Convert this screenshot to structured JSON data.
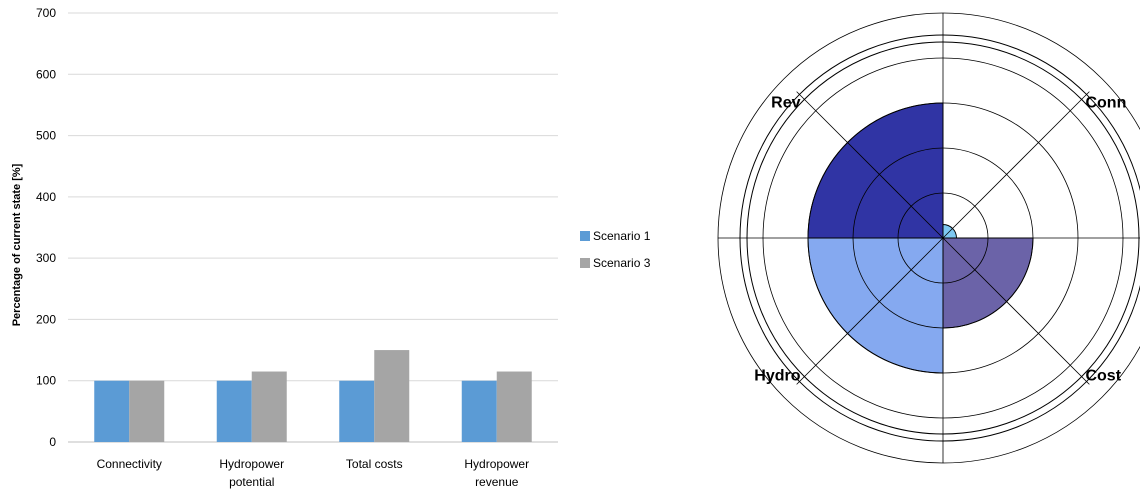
{
  "chart_data": [
    {
      "type": "bar",
      "title": "",
      "xlabel": "",
      "ylabel": "Percentage of current state [%]",
      "ylim": [
        0,
        700
      ],
      "yticks": [
        0,
        100,
        200,
        300,
        400,
        500,
        600,
        700
      ],
      "grid": true,
      "legend_position": "right",
      "categories": [
        [
          "Connectivity"
        ],
        [
          "Hydropower",
          "potential"
        ],
        [
          "Total costs"
        ],
        [
          "Hydropower",
          "revenue"
        ]
      ],
      "series": [
        {
          "name": "Scenario 1",
          "color": "#5b9bd5",
          "values": [
            100,
            100,
            100,
            100
          ]
        },
        {
          "name": "Scenario 3",
          "color": "#a5a5a5",
          "values": [
            100,
            115,
            150,
            115
          ]
        }
      ]
    },
    {
      "type": "polar",
      "title": "",
      "ring_count": 5,
      "sectors": [
        {
          "label": "Conn",
          "value": 0.3,
          "color": "#7ec8f2"
        },
        {
          "label": "Cost",
          "value": 2.0,
          "color": "#6b63a8"
        },
        {
          "label": "Hydro",
          "value": 3.0,
          "color": "#85a9f0"
        },
        {
          "label": "Rev",
          "value": 3.0,
          "color": "#3034a4"
        }
      ]
    }
  ]
}
